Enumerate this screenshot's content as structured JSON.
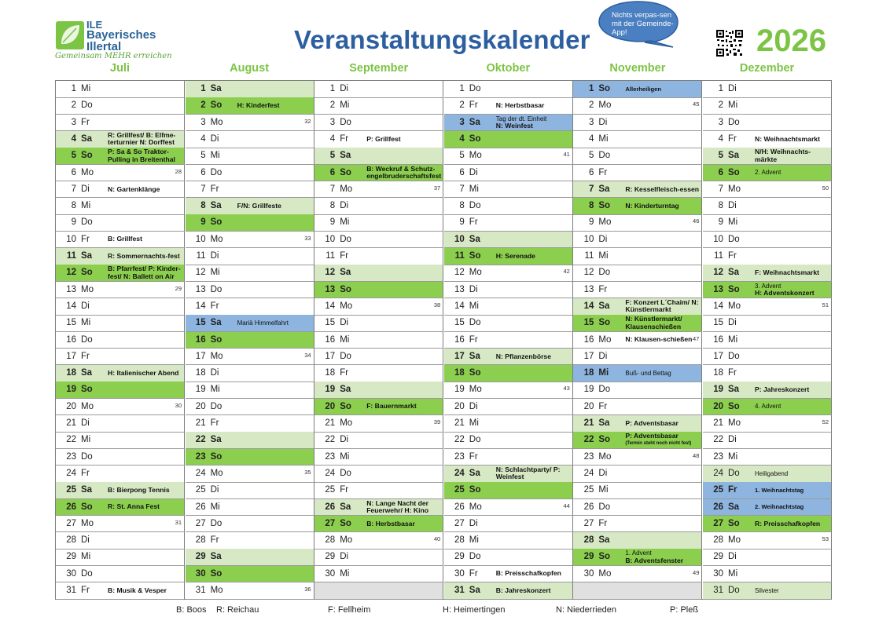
{
  "header": {
    "logo_ile": "ILE",
    "logo_line1": "Bayerisches",
    "logo_line2": "Illertal",
    "logo_tagline": "Gemeinsam MEHR erreichen",
    "title": "Veranstaltungskalender",
    "bubble_text": "Nichts verpas-sen mit der Gemeinde-App!",
    "year": "2026"
  },
  "colors": {
    "green": "#8ccf4e",
    "light_green": "#d7e8c4",
    "blue": "#8eb5e0",
    "title_blue": "#2d5fa0",
    "accent_green": "#7cc444"
  },
  "months": [
    {
      "name": "Juli",
      "days": [
        {
          "d": "1",
          "wd": "Mi"
        },
        {
          "d": "2",
          "wd": "Do"
        },
        {
          "d": "3",
          "wd": "Fr"
        },
        {
          "d": "4",
          "wd": "Sa",
          "bg": "light",
          "ev": "R: Grillfest/ B: Elfme-terturnier N: Dorffest"
        },
        {
          "d": "5",
          "wd": "So",
          "bg": "green",
          "ev": "P: Sa & So Traktor-Pulling in Breitenthal"
        },
        {
          "d": "6",
          "wd": "Mo",
          "wk": "28"
        },
        {
          "d": "7",
          "wd": "Di",
          "ev": "N: Gartenklänge"
        },
        {
          "d": "8",
          "wd": "Mi"
        },
        {
          "d": "9",
          "wd": "Do"
        },
        {
          "d": "10",
          "wd": "Fr",
          "ev": "B: Grillfest"
        },
        {
          "d": "11",
          "wd": "Sa",
          "bg": "light",
          "ev": "R: Sommernachts-fest"
        },
        {
          "d": "12",
          "wd": "So",
          "bg": "green",
          "ev": "B: Pfarrfest/ P: Kinder-fest/ N: Ballett on Air"
        },
        {
          "d": "13",
          "wd": "Mo",
          "wk": "29"
        },
        {
          "d": "14",
          "wd": "Di"
        },
        {
          "d": "15",
          "wd": "Mi"
        },
        {
          "d": "16",
          "wd": "Do"
        },
        {
          "d": "17",
          "wd": "Fr"
        },
        {
          "d": "18",
          "wd": "Sa",
          "bg": "light",
          "ev": "H: Italienischer Abend"
        },
        {
          "d": "19",
          "wd": "So",
          "bg": "green"
        },
        {
          "d": "20",
          "wd": "Mo",
          "wk": "30"
        },
        {
          "d": "21",
          "wd": "Di"
        },
        {
          "d": "22",
          "wd": "Mi"
        },
        {
          "d": "23",
          "wd": "Do"
        },
        {
          "d": "24",
          "wd": "Fr"
        },
        {
          "d": "25",
          "wd": "Sa",
          "bg": "light",
          "ev": "B: Bierpong Tennis"
        },
        {
          "d": "26",
          "wd": "So",
          "bg": "green",
          "ev": "R: St. Anna Fest"
        },
        {
          "d": "27",
          "wd": "Mo",
          "wk": "31"
        },
        {
          "d": "28",
          "wd": "Di"
        },
        {
          "d": "29",
          "wd": "Mi"
        },
        {
          "d": "30",
          "wd": "Do"
        },
        {
          "d": "31",
          "wd": "Fr",
          "ev": "B: Musik & Vesper"
        }
      ]
    },
    {
      "name": "August",
      "days": [
        {
          "d": "1",
          "wd": "Sa",
          "bg": "light"
        },
        {
          "d": "2",
          "wd": "So",
          "bg": "green",
          "ev": "H: Kinderfest"
        },
        {
          "d": "3",
          "wd": "Mo",
          "wk": "32"
        },
        {
          "d": "4",
          "wd": "Di"
        },
        {
          "d": "5",
          "wd": "Mi"
        },
        {
          "d": "6",
          "wd": "Do"
        },
        {
          "d": "7",
          "wd": "Fr"
        },
        {
          "d": "8",
          "wd": "Sa",
          "bg": "light",
          "ev": "F/N: Grillfeste"
        },
        {
          "d": "9",
          "wd": "So",
          "bg": "green"
        },
        {
          "d": "10",
          "wd": "Mo",
          "wk": "33"
        },
        {
          "d": "11",
          "wd": "Di"
        },
        {
          "d": "12",
          "wd": "Mi"
        },
        {
          "d": "13",
          "wd": "Do"
        },
        {
          "d": "14",
          "wd": "Fr"
        },
        {
          "d": "15",
          "wd": "Sa",
          "bg": "blue",
          "ev": "Mariä Himmelfahrt",
          "evs": "small"
        },
        {
          "d": "16",
          "wd": "So",
          "bg": "green"
        },
        {
          "d": "17",
          "wd": "Mo",
          "wk": "34"
        },
        {
          "d": "18",
          "wd": "Di"
        },
        {
          "d": "19",
          "wd": "Mi"
        },
        {
          "d": "20",
          "wd": "Do"
        },
        {
          "d": "21",
          "wd": "Fr"
        },
        {
          "d": "22",
          "wd": "Sa",
          "bg": "light"
        },
        {
          "d": "23",
          "wd": "So",
          "bg": "green"
        },
        {
          "d": "24",
          "wd": "Mo",
          "wk": "35"
        },
        {
          "d": "25",
          "wd": "Di"
        },
        {
          "d": "26",
          "wd": "Mi"
        },
        {
          "d": "27",
          "wd": "Do"
        },
        {
          "d": "28",
          "wd": "Fr"
        },
        {
          "d": "29",
          "wd": "Sa",
          "bg": "light"
        },
        {
          "d": "30",
          "wd": "So",
          "bg": "green"
        },
        {
          "d": "31",
          "wd": "Mo",
          "wk": "36"
        }
      ]
    },
    {
      "name": "September",
      "days": [
        {
          "d": "1",
          "wd": "Di"
        },
        {
          "d": "2",
          "wd": "Mi"
        },
        {
          "d": "3",
          "wd": "Do"
        },
        {
          "d": "4",
          "wd": "Fr",
          "ev": "P: Grillfest"
        },
        {
          "d": "5",
          "wd": "Sa",
          "bg": "light"
        },
        {
          "d": "6",
          "wd": "So",
          "bg": "green",
          "ev": "B: Weckruf & Schutz-engelbruderschaftsfest"
        },
        {
          "d": "7",
          "wd": "Mo",
          "wk": "37"
        },
        {
          "d": "8",
          "wd": "Di"
        },
        {
          "d": "9",
          "wd": "Mi"
        },
        {
          "d": "10",
          "wd": "Do"
        },
        {
          "d": "11",
          "wd": "Fr"
        },
        {
          "d": "12",
          "wd": "Sa",
          "bg": "light"
        },
        {
          "d": "13",
          "wd": "So",
          "bg": "green"
        },
        {
          "d": "14",
          "wd": "Mo",
          "wk": "38"
        },
        {
          "d": "15",
          "wd": "Di"
        },
        {
          "d": "16",
          "wd": "Mi"
        },
        {
          "d": "17",
          "wd": "Do"
        },
        {
          "d": "18",
          "wd": "Fr"
        },
        {
          "d": "19",
          "wd": "Sa",
          "bg": "light"
        },
        {
          "d": "20",
          "wd": "So",
          "bg": "green",
          "ev": "F: Bauernmarkt"
        },
        {
          "d": "21",
          "wd": "Mo",
          "wk": "39"
        },
        {
          "d": "22",
          "wd": "Di"
        },
        {
          "d": "23",
          "wd": "Mi"
        },
        {
          "d": "24",
          "wd": "Do"
        },
        {
          "d": "25",
          "wd": "Fr"
        },
        {
          "d": "26",
          "wd": "Sa",
          "bg": "light",
          "ev": "N: Lange Nacht der Feuerwehr/ H: Kino"
        },
        {
          "d": "27",
          "wd": "So",
          "bg": "green",
          "ev": "B: Herbstbasar"
        },
        {
          "d": "28",
          "wd": "Mo",
          "wk": "40"
        },
        {
          "d": "29",
          "wd": "Di"
        },
        {
          "d": "30",
          "wd": "Mi"
        },
        {
          "d": "",
          "wd": "",
          "bg": "gray"
        }
      ]
    },
    {
      "name": "Oktober",
      "days": [
        {
          "d": "1",
          "wd": "Do"
        },
        {
          "d": "2",
          "wd": "Fr",
          "ev": "N: Herbstbasar"
        },
        {
          "d": "3",
          "wd": "Sa",
          "bg": "blue",
          "ev": "Tag der dt. Einheit N: Weinfest",
          "evs": "mixed"
        },
        {
          "d": "4",
          "wd": "So",
          "bg": "green"
        },
        {
          "d": "5",
          "wd": "Mo",
          "wk": "41"
        },
        {
          "d": "6",
          "wd": "Di"
        },
        {
          "d": "7",
          "wd": "Mi"
        },
        {
          "d": "8",
          "wd": "Do"
        },
        {
          "d": "9",
          "wd": "Fr"
        },
        {
          "d": "10",
          "wd": "Sa",
          "bg": "light"
        },
        {
          "d": "11",
          "wd": "So",
          "bg": "green",
          "ev": "H: Serenade"
        },
        {
          "d": "12",
          "wd": "Mo",
          "wk": "42"
        },
        {
          "d": "13",
          "wd": "Di"
        },
        {
          "d": "14",
          "wd": "Mi"
        },
        {
          "d": "15",
          "wd": "Do"
        },
        {
          "d": "16",
          "wd": "Fr"
        },
        {
          "d": "17",
          "wd": "Sa",
          "bg": "light",
          "ev": "N: Pflanzenbörse"
        },
        {
          "d": "18",
          "wd": "So",
          "bg": "green"
        },
        {
          "d": "19",
          "wd": "Mo",
          "wk": "43"
        },
        {
          "d": "20",
          "wd": "Di"
        },
        {
          "d": "21",
          "wd": "Mi"
        },
        {
          "d": "22",
          "wd": "Do"
        },
        {
          "d": "23",
          "wd": "Fr"
        },
        {
          "d": "24",
          "wd": "Sa",
          "bg": "light",
          "ev": "N: Schlachtparty/ P: Weinfest"
        },
        {
          "d": "25",
          "wd": "So",
          "bg": "green"
        },
        {
          "d": "26",
          "wd": "Mo",
          "wk": "44"
        },
        {
          "d": "27",
          "wd": "Di"
        },
        {
          "d": "28",
          "wd": "Mi"
        },
        {
          "d": "29",
          "wd": "Do"
        },
        {
          "d": "30",
          "wd": "Fr",
          "ev": "B: Preisschafkopfen"
        },
        {
          "d": "31",
          "wd": "Sa",
          "bg": "light",
          "ev": "B: Jahreskonzert"
        }
      ]
    },
    {
      "name": "November",
      "days": [
        {
          "d": "1",
          "wd": "So",
          "bg": "blue",
          "ev": "Allerheiligen",
          "evs": "tiny"
        },
        {
          "d": "2",
          "wd": "Mo",
          "wk": "45"
        },
        {
          "d": "3",
          "wd": "Di"
        },
        {
          "d": "4",
          "wd": "Mi"
        },
        {
          "d": "5",
          "wd": "Do"
        },
        {
          "d": "6",
          "wd": "Fr"
        },
        {
          "d": "7",
          "wd": "Sa",
          "bg": "light",
          "ev": "R: Kesselfleisch-essen"
        },
        {
          "d": "8",
          "wd": "So",
          "bg": "green",
          "ev": "N: Kinderturntag"
        },
        {
          "d": "9",
          "wd": "Mo",
          "wk": "46"
        },
        {
          "d": "10",
          "wd": "Di"
        },
        {
          "d": "11",
          "wd": "Mi"
        },
        {
          "d": "12",
          "wd": "Do"
        },
        {
          "d": "13",
          "wd": "Fr"
        },
        {
          "d": "14",
          "wd": "Sa",
          "bg": "light",
          "ev": "F: Konzert L´Chaim/ N: Künstlermarkt"
        },
        {
          "d": "15",
          "wd": "So",
          "bg": "green",
          "ev": "N: Künstlermarkt/ Klausenschießen"
        },
        {
          "d": "16",
          "wd": "Mo",
          "wk": "47",
          "ev": "N: Klausen-schießen"
        },
        {
          "d": "17",
          "wd": "Di"
        },
        {
          "d": "18",
          "wd": "Mi",
          "bg": "blue",
          "ev": "Buß- und Bettag",
          "evs": "small"
        },
        {
          "d": "19",
          "wd": "Do"
        },
        {
          "d": "20",
          "wd": "Fr"
        },
        {
          "d": "21",
          "wd": "Sa",
          "bg": "light",
          "ev": "P: Adventsbasar"
        },
        {
          "d": "22",
          "wd": "So",
          "bg": "green",
          "ev": "P: Adventsbasar",
          "ev2": "(Termin steht noch nicht fest)"
        },
        {
          "d": "23",
          "wd": "Mo",
          "wk": "48"
        },
        {
          "d": "24",
          "wd": "Di"
        },
        {
          "d": "25",
          "wd": "Mi"
        },
        {
          "d": "26",
          "wd": "Do"
        },
        {
          "d": "27",
          "wd": "Fr"
        },
        {
          "d": "28",
          "wd": "Sa",
          "bg": "light"
        },
        {
          "d": "29",
          "wd": "So",
          "bg": "green",
          "ev": "B: Adventsfenster",
          "ev2top": "1. Advent"
        },
        {
          "d": "30",
          "wd": "Mo",
          "wk": "49"
        },
        {
          "d": "",
          "wd": "",
          "bg": "gray"
        }
      ]
    },
    {
      "name": "Dezember",
      "days": [
        {
          "d": "1",
          "wd": "Di"
        },
        {
          "d": "2",
          "wd": "Mi"
        },
        {
          "d": "3",
          "wd": "Do"
        },
        {
          "d": "4",
          "wd": "Fr",
          "ev": "N: Weihnachtsmarkt"
        },
        {
          "d": "5",
          "wd": "Sa",
          "bg": "light",
          "ev": "N/H: Weihnachts-märkte"
        },
        {
          "d": "6",
          "wd": "So",
          "bg": "green",
          "ev": "2. Advent",
          "evs": "small"
        },
        {
          "d": "7",
          "wd": "Mo",
          "wk": "50"
        },
        {
          "d": "8",
          "wd": "Di"
        },
        {
          "d": "9",
          "wd": "Mi"
        },
        {
          "d": "10",
          "wd": "Do"
        },
        {
          "d": "11",
          "wd": "Fr"
        },
        {
          "d": "12",
          "wd": "Sa",
          "bg": "light",
          "ev": "F: Weihnachtsmarkt"
        },
        {
          "d": "13",
          "wd": "So",
          "bg": "green",
          "ev": "H: Adventskonzert",
          "ev2top": "3. Advent"
        },
        {
          "d": "14",
          "wd": "Mo",
          "wk": "51"
        },
        {
          "d": "15",
          "wd": "Di"
        },
        {
          "d": "16",
          "wd": "Mi"
        },
        {
          "d": "17",
          "wd": "Do"
        },
        {
          "d": "18",
          "wd": "Fr"
        },
        {
          "d": "19",
          "wd": "Sa",
          "bg": "light",
          "ev": "P: Jahreskonzert"
        },
        {
          "d": "20",
          "wd": "So",
          "bg": "green",
          "ev": "4. Advent",
          "evs": "small"
        },
        {
          "d": "21",
          "wd": "Mo",
          "wk": "52"
        },
        {
          "d": "22",
          "wd": "Di"
        },
        {
          "d": "23",
          "wd": "Mi"
        },
        {
          "d": "24",
          "wd": "Do",
          "bg": "light",
          "ev": "Heiligabend",
          "evs": "small"
        },
        {
          "d": "25",
          "wd": "Fr",
          "bg": "blue",
          "ev": "1. Weihnachtstag",
          "evs": "tiny"
        },
        {
          "d": "26",
          "wd": "Sa",
          "bg": "blue",
          "ev": "2. Weihnachtstag",
          "evs": "tiny"
        },
        {
          "d": "27",
          "wd": "So",
          "bg": "green",
          "ev": "R: Preisschafkopfen"
        },
        {
          "d": "28",
          "wd": "Mo",
          "wk": "53"
        },
        {
          "d": "29",
          "wd": "Di"
        },
        {
          "d": "30",
          "wd": "Mi"
        },
        {
          "d": "31",
          "wd": "Do",
          "bg": "light",
          "ev": "Silvester",
          "evs": "small"
        }
      ]
    }
  ],
  "legend": [
    {
      "text": "B: Boos"
    },
    {
      "text": "R: Reichau"
    },
    {
      "text": "F: Fellheim"
    },
    {
      "text": "H: Heimertingen"
    },
    {
      "text": "N: Niederrieden"
    },
    {
      "text": "P: Pleß"
    }
  ]
}
